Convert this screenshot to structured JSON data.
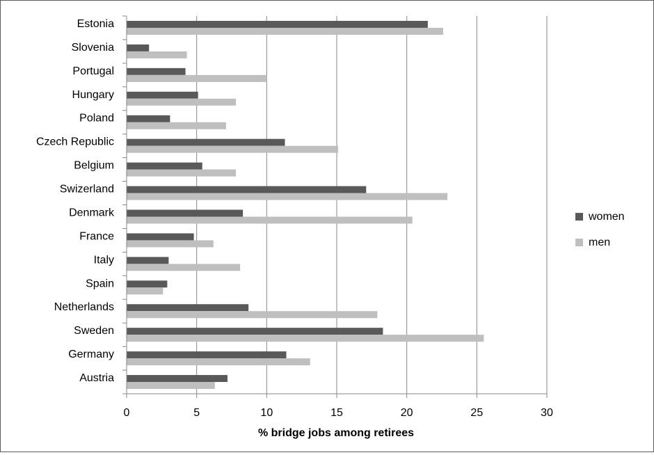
{
  "chart_data": {
    "type": "bar",
    "orientation": "horizontal",
    "title": "",
    "xlabel": "% bridge jobs among retirees",
    "ylabel": "",
    "xlim": [
      0,
      30
    ],
    "xticks": [
      0,
      5,
      10,
      15,
      20,
      25,
      30
    ],
    "grid": "vertical",
    "legend_position": "right",
    "categories": [
      "Estonia",
      "Slovenia",
      "Portugal",
      "Hungary",
      "Poland",
      "Czech Republic",
      "Belgium",
      "Swizerland",
      "Denmark",
      "France",
      "Italy",
      "Spain",
      "Netherlands",
      "Sweden",
      "Germany",
      "Austria"
    ],
    "series": [
      {
        "name": "women",
        "color": "#595959",
        "values": [
          21.5,
          1.6,
          4.2,
          5.1,
          3.1,
          11.3,
          5.4,
          17.1,
          8.3,
          4.8,
          3.0,
          2.9,
          8.7,
          18.3,
          11.4,
          7.2
        ]
      },
      {
        "name": "men",
        "color": "#bfbfbf",
        "values": [
          22.6,
          4.3,
          10.0,
          7.8,
          7.1,
          15.1,
          7.8,
          22.9,
          20.4,
          6.2,
          8.1,
          2.6,
          17.9,
          25.5,
          13.1,
          6.3
        ]
      }
    ]
  }
}
